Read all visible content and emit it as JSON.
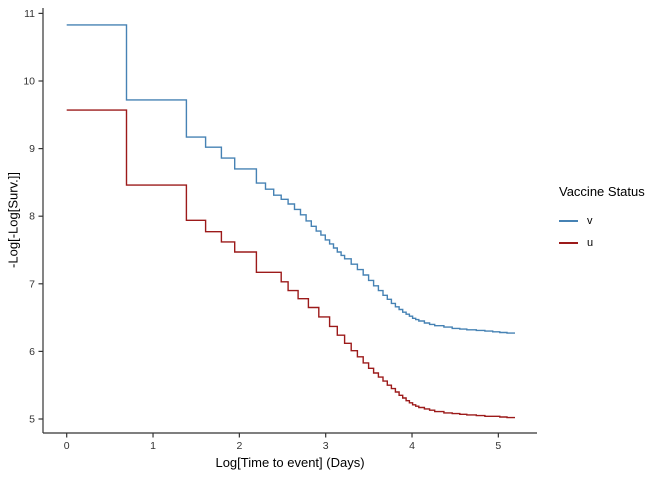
{
  "chart_data": {
    "type": "line",
    "subtype": "step-survival-cloglog",
    "title": "",
    "xlabel": "Log[Time to event] (Days)",
    "ylabel": "-Log[-Log[Surv.]]",
    "legend_title": "Vaccine Status",
    "legend_position": "right",
    "grid": false,
    "x_ticks": [
      0,
      1,
      2,
      3,
      4,
      5
    ],
    "y_ticks": [
      5,
      6,
      7,
      8,
      9,
      10,
      11
    ],
    "xlim": [
      -0.28,
      5.45
    ],
    "ylim": [
      4.79,
      11.08
    ],
    "axis_color": "#333333",
    "tick_label_color": "#333333",
    "background_color": "#ffffff",
    "series": [
      {
        "name": "v",
        "color": "#4682B4",
        "x_end": 5.193,
        "points": [
          [
            0,
            10.83
          ],
          [
            0.693,
            9.72
          ],
          [
            1.386,
            9.17
          ],
          [
            1.609,
            9.02
          ],
          [
            1.792,
            8.86
          ],
          [
            1.946,
            8.7
          ],
          [
            2.197,
            8.49
          ],
          [
            2.303,
            8.4
          ],
          [
            2.398,
            8.31
          ],
          [
            2.485,
            8.25
          ],
          [
            2.565,
            8.18
          ],
          [
            2.639,
            8.1
          ],
          [
            2.708,
            8.02
          ],
          [
            2.773,
            7.93
          ],
          [
            2.833,
            7.85
          ],
          [
            2.89,
            7.78
          ],
          [
            2.944,
            7.72
          ],
          [
            2.996,
            7.65
          ],
          [
            3.045,
            7.59
          ],
          [
            3.091,
            7.53
          ],
          [
            3.135,
            7.47
          ],
          [
            3.178,
            7.42
          ],
          [
            3.219,
            7.37
          ],
          [
            3.296,
            7.29
          ],
          [
            3.367,
            7.21
          ],
          [
            3.434,
            7.13
          ],
          [
            3.497,
            7.05
          ],
          [
            3.555,
            6.97
          ],
          [
            3.611,
            6.9
          ],
          [
            3.664,
            6.83
          ],
          [
            3.714,
            6.77
          ],
          [
            3.761,
            6.71
          ],
          [
            3.807,
            6.66
          ],
          [
            3.85,
            6.62
          ],
          [
            3.892,
            6.58
          ],
          [
            3.932,
            6.55
          ],
          [
            3.97,
            6.52
          ],
          [
            4.007,
            6.49
          ],
          [
            4.043,
            6.47
          ],
          [
            4.078,
            6.45
          ],
          [
            4.143,
            6.42
          ],
          [
            4.204,
            6.4
          ],
          [
            4.263,
            6.38
          ],
          [
            4.369,
            6.36
          ],
          [
            4.466,
            6.34
          ],
          [
            4.554,
            6.33
          ],
          [
            4.635,
            6.32
          ],
          [
            4.745,
            6.31
          ],
          [
            4.844,
            6.3
          ],
          [
            4.934,
            6.29
          ],
          [
            5.017,
            6.28
          ],
          [
            5.1,
            6.27
          ]
        ]
      },
      {
        "name": "u",
        "color": "#9C1A1A",
        "x_end": 5.193,
        "points": [
          [
            0,
            9.57
          ],
          [
            0.693,
            8.46
          ],
          [
            1.386,
            7.94
          ],
          [
            1.609,
            7.77
          ],
          [
            1.792,
            7.62
          ],
          [
            1.946,
            7.47
          ],
          [
            2.197,
            7.17
          ],
          [
            2.485,
            7.03
          ],
          [
            2.565,
            6.9
          ],
          [
            2.68,
            6.78
          ],
          [
            2.8,
            6.65
          ],
          [
            2.92,
            6.51
          ],
          [
            3.045,
            6.37
          ],
          [
            3.135,
            6.24
          ],
          [
            3.219,
            6.12
          ],
          [
            3.296,
            6.01
          ],
          [
            3.367,
            5.92
          ],
          [
            3.434,
            5.83
          ],
          [
            3.497,
            5.75
          ],
          [
            3.555,
            5.68
          ],
          [
            3.611,
            5.62
          ],
          [
            3.664,
            5.56
          ],
          [
            3.714,
            5.5
          ],
          [
            3.761,
            5.45
          ],
          [
            3.807,
            5.4
          ],
          [
            3.85,
            5.35
          ],
          [
            3.892,
            5.31
          ],
          [
            3.932,
            5.27
          ],
          [
            3.97,
            5.24
          ],
          [
            4.007,
            5.21
          ],
          [
            4.043,
            5.19
          ],
          [
            4.078,
            5.17
          ],
          [
            4.143,
            5.15
          ],
          [
            4.204,
            5.13
          ],
          [
            4.263,
            5.11
          ],
          [
            4.369,
            5.09
          ],
          [
            4.466,
            5.08
          ],
          [
            4.554,
            5.07
          ],
          [
            4.635,
            5.06
          ],
          [
            4.745,
            5.05
          ],
          [
            4.844,
            5.04
          ],
          [
            4.934,
            5.04
          ],
          [
            5.017,
            5.03
          ],
          [
            5.1,
            5.02
          ]
        ]
      }
    ]
  }
}
